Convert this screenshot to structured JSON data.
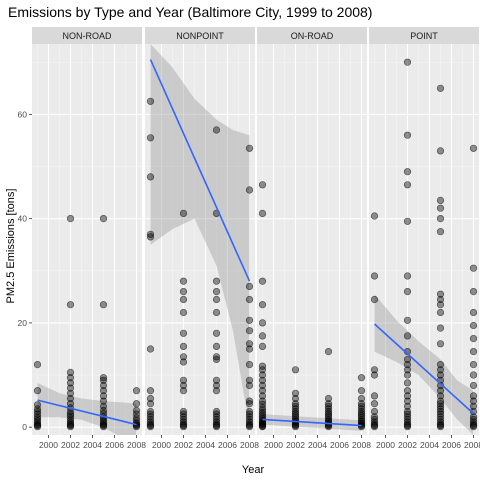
{
  "chart_data": {
    "type": "scatter",
    "title": "Emissions by Type and Year (Baltimore City, 1999 to 2008)",
    "xlabel": "Year",
    "ylabel": "PM2.5 Emissions [tons]",
    "x_ticks": [
      2000,
      2002,
      2004,
      2006,
      2008
    ],
    "y_ticks": [
      0,
      20,
      40,
      60
    ],
    "xlim": [
      1998.5,
      2008.5
    ],
    "ylim": [
      -1.5,
      73.5
    ],
    "grid": true,
    "facets": [
      {
        "label": "NON-ROAD",
        "points": [
          {
            "x": 1999,
            "y": [
              0.1,
              0.3,
              0.5,
              0.8,
              1.2,
              1.6,
              2.0,
              2.5,
              3.0,
              3.5,
              4.3,
              7.0,
              12.0
            ]
          },
          {
            "x": 2002,
            "y": [
              0.1,
              0.3,
              0.5,
              0.8,
              1.2,
              1.6,
              2.1,
              2.5,
              3.0,
              3.7,
              4.5,
              5.5,
              6.5,
              7.5,
              8.5,
              9.5,
              10.5,
              23.5,
              40.0
            ]
          },
          {
            "x": 2005,
            "y": [
              0.1,
              0.3,
              0.5,
              0.8,
              1.2,
              1.6,
              2.0,
              2.6,
              3.2,
              4.0,
              5.0,
              6.0,
              7.0,
              8.0,
              9.0,
              9.5,
              23.5,
              40.0
            ]
          },
          {
            "x": 2008,
            "y": [
              0.1,
              0.3,
              0.5,
              0.8,
              1.3,
              1.8,
              2.5,
              3.2,
              4.5,
              7.0
            ]
          }
        ],
        "fit": {
          "x": [
            1999,
            2008
          ],
          "y": [
            5.2,
            0.5
          ]
        },
        "band": {
          "x": [
            1999,
            2001,
            2003,
            2005,
            2006.5,
            2008
          ],
          "upper": [
            8.5,
            6.5,
            5.5,
            5.0,
            4.8,
            4.5
          ],
          "lower": [
            1.9,
            1.9,
            1.4,
            0.0,
            -1.8,
            -3.5
          ]
        }
      },
      {
        "label": "NONPOINT",
        "points": [
          {
            "x": 1999,
            "y": [
              0.1,
              0.3,
              0.6,
              1.0,
              1.5,
              2.0,
              2.5,
              3.0,
              4.5,
              5.5,
              7.0,
              15.0,
              36.5,
              37.0,
              48.0,
              55.5,
              62.5
            ]
          },
          {
            "x": 2002,
            "y": [
              0.1,
              0.3,
              0.6,
              1.0,
              1.5,
              2.0,
              2.5,
              3.0,
              7.0,
              8.0,
              9.0,
              12.5,
              13.5,
              15.5,
              18.0,
              22.0,
              24.5,
              26.0,
              28.0,
              41.0
            ]
          },
          {
            "x": 2005,
            "y": [
              0.1,
              0.3,
              0.6,
              1.0,
              1.5,
              2.0,
              2.5,
              3.0,
              7.0,
              8.0,
              9.0,
              13.0,
              13.5,
              15.5,
              18.0,
              22.0,
              24.5,
              26.0,
              28.0,
              41.0,
              57.0
            ]
          },
          {
            "x": 2008,
            "y": [
              0.1,
              0.3,
              0.6,
              1.0,
              1.5,
              2.0,
              2.5,
              3.0,
              4.5,
              5.0,
              8.0,
              9.0,
              12.0,
              15.0,
              16.0,
              18.5,
              20.5,
              24.5,
              27.0,
              45.5,
              53.5
            ]
          }
        ],
        "fit": {
          "x": [
            1999,
            2008
          ],
          "y": [
            70.5,
            28.0
          ]
        },
        "band": {
          "x": [
            1999,
            2001,
            2003,
            2005,
            2006.5,
            2008
          ],
          "upper": [
            73.5,
            69.0,
            63.0,
            59.0,
            57.0,
            56.0
          ],
          "lower": [
            35.0,
            38.0,
            40.0,
            31.0,
            18.5,
            0.0
          ]
        }
      },
      {
        "label": "ON-ROAD",
        "points": [
          {
            "x": 1999,
            "y": [
              0.1,
              0.2,
              0.4,
              0.6,
              0.8,
              1.0,
              1.3,
              1.6,
              2.0,
              2.4,
              2.8,
              3.3,
              3.8,
              4.4,
              5.0,
              6.0,
              7.0,
              8.0,
              9.0,
              10.0,
              11.0,
              11.7,
              15.5,
              17.5,
              20.0,
              23.5,
              28.0,
              41.0,
              46.5
            ]
          },
          {
            "x": 2002,
            "y": [
              0.1,
              0.3,
              0.5,
              0.8,
              1.1,
              1.4,
              1.8,
              2.2,
              2.6,
              3.0,
              3.5,
              4.0,
              4.5,
              5.5,
              6.5,
              11.0
            ]
          },
          {
            "x": 2005,
            "y": [
              0.1,
              0.3,
              0.5,
              0.8,
              1.1,
              1.4,
              1.8,
              2.2,
              2.6,
              3.0,
              3.5,
              4.0,
              4.5,
              5.5,
              14.5
            ]
          },
          {
            "x": 2008,
            "y": [
              0.1,
              0.3,
              0.5,
              0.8,
              1.1,
              1.4,
              1.8,
              2.2,
              2.6,
              3.0,
              3.5,
              4.0,
              4.5,
              5.5,
              7.0,
              9.5
            ]
          }
        ],
        "fit": {
          "x": [
            1999,
            2008
          ],
          "y": [
            1.5,
            0.3
          ]
        },
        "band": {
          "x": [
            1999,
            2008
          ],
          "upper": [
            2.5,
            1.3
          ],
          "lower": [
            0.5,
            -0.7
          ]
        }
      },
      {
        "label": "POINT",
        "points": [
          {
            "x": 1999,
            "y": [
              0.1,
              0.3,
              0.6,
              1.0,
              1.5,
              2.0,
              3.0,
              4.5,
              6.0,
              10.0,
              11.0,
              24.5,
              29.0,
              40.5
            ]
          },
          {
            "x": 2002,
            "y": [
              0.1,
              0.3,
              0.6,
              1.0,
              1.5,
              2.0,
              2.5,
              3.0,
              4.0,
              5.0,
              6.0,
              7.0,
              8.5,
              10.0,
              11.0,
              12.0,
              13.0,
              14.5,
              17.5,
              20.5,
              26.0,
              29.0,
              39.5,
              46.5,
              49.0,
              56.0,
              70.0
            ]
          },
          {
            "x": 2005,
            "y": [
              0.1,
              0.3,
              0.6,
              1.0,
              1.5,
              2.0,
              2.5,
              3.0,
              3.5,
              4.0,
              4.5,
              5.0,
              6.0,
              7.0,
              8.0,
              9.0,
              10.0,
              11.0,
              12.0,
              16.0,
              19.0,
              22.0,
              23.5,
              24.5,
              25.5,
              37.5,
              40.0,
              42.0,
              43.5,
              53.0,
              65.0
            ]
          },
          {
            "x": 2008,
            "y": [
              0.1,
              0.3,
              0.6,
              1.0,
              1.5,
              2.0,
              3.0,
              4.0,
              5.0,
              6.0,
              8.0,
              10.0,
              12.0,
              14.5,
              17.0,
              19.5,
              22.0,
              26.0,
              30.5,
              53.5
            ]
          }
        ],
        "fit": {
          "x": [
            1999,
            2008
          ],
          "y": [
            19.8,
            2.6
          ]
        },
        "band": {
          "x": [
            1999,
            2001,
            2003,
            2005,
            2006.5,
            2008
          ],
          "upper": [
            25.5,
            20.5,
            16.5,
            13.0,
            9.0,
            7.0
          ],
          "lower": [
            14.5,
            12.5,
            10.0,
            5.5,
            1.5,
            -1.5
          ]
        }
      }
    ]
  },
  "colors": {
    "panel_bg": "#ebebeb",
    "strip_bg": "#d9d9d9",
    "grid_major": "#ffffff",
    "grid_minor": "#f5f5f5",
    "point_fill": "#000000",
    "fit_line": "#3366ff",
    "band_fill": "#999999"
  }
}
